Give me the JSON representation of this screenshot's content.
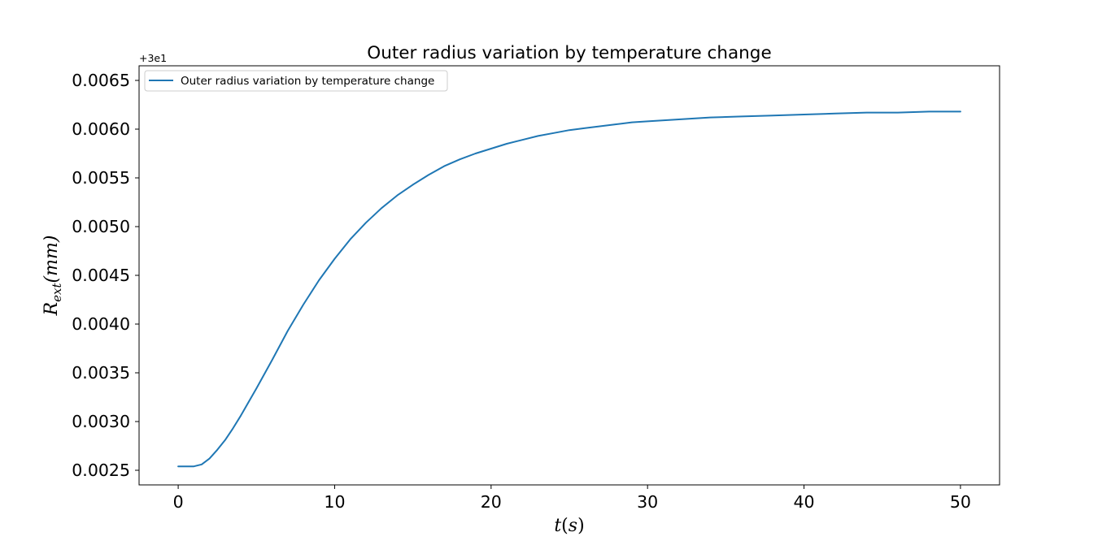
{
  "chart_data": {
    "type": "line",
    "title": "Outer radius variation by temperature change",
    "xlabel": "t(s)",
    "xlabel_parts": {
      "pre": "t",
      "paren_open": "(",
      "var": "s",
      "paren_close": ")"
    },
    "ylabel": "R_ext(mm)",
    "ylabel_parts": {
      "main": "R",
      "sub": "ext",
      "unit": "(mm)"
    },
    "y_offset_text": "+3e1",
    "y_offset_value": 30,
    "xlim": [
      -2.5,
      52.5
    ],
    "ylim": [
      0.00235,
      0.00665
    ],
    "xticks": [
      0,
      10,
      20,
      30,
      40,
      50
    ],
    "xtick_labels": [
      "0",
      "10",
      "20",
      "30",
      "40",
      "50"
    ],
    "yticks": [
      0.0025,
      0.003,
      0.0035,
      0.004,
      0.0045,
      0.005,
      0.0055,
      0.006,
      0.0065
    ],
    "ytick_labels": [
      "0.0025",
      "0.0030",
      "0.0035",
      "0.0040",
      "0.0045",
      "0.0050",
      "0.0055",
      "0.0060",
      "0.0065"
    ],
    "grid": false,
    "legend_position": "upper-left",
    "series": [
      {
        "name": "Outer radius variation by temperature change",
        "color": "#1f77b4",
        "x": [
          0,
          0.5,
          1,
          1.5,
          2,
          2.5,
          3,
          3.5,
          4,
          4.5,
          5,
          6,
          7,
          8,
          9,
          10,
          11,
          12,
          13,
          14,
          15,
          16,
          17,
          18,
          19,
          20,
          21,
          22,
          23,
          24,
          25,
          26,
          27,
          28,
          29,
          30,
          32,
          34,
          36,
          38,
          40,
          42,
          44,
          46,
          48,
          50
        ],
        "y": [
          0.00254,
          0.00254,
          0.00254,
          0.00256,
          0.00262,
          0.00271,
          0.00281,
          0.00293,
          0.00306,
          0.0032,
          0.00334,
          0.00363,
          0.00393,
          0.0042,
          0.00445,
          0.00467,
          0.00487,
          0.00504,
          0.00519,
          0.00532,
          0.00543,
          0.00553,
          0.00562,
          0.00569,
          0.00575,
          0.0058,
          0.00585,
          0.00589,
          0.00593,
          0.00596,
          0.00599,
          0.00601,
          0.00603,
          0.00605,
          0.00607,
          0.00608,
          0.0061,
          0.00612,
          0.00613,
          0.00614,
          0.00615,
          0.00616,
          0.00617,
          0.00617,
          0.00618,
          0.00618
        ]
      }
    ]
  }
}
